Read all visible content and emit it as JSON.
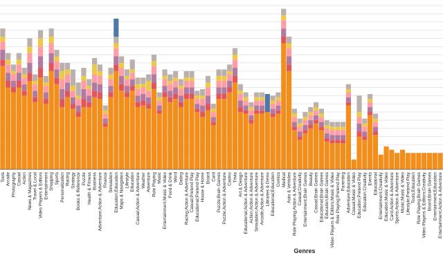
{
  "chart_data": {
    "type": "bar",
    "stacked": true,
    "xlabel": "Genres",
    "ylabel": "",
    "ylim": [
      0,
      1.0
    ],
    "grid": true,
    "legend": "none",
    "categories": [
      "Tools",
      "Arcade",
      "Photography",
      "Casual",
      "Action",
      "News & Magazines",
      "Travel & Local",
      "Video Players & Editors",
      "Entertainment",
      "Shopping",
      "Sports",
      "Personalization",
      "Racing",
      "Strategy",
      "Books & Reference",
      "Puzzle",
      "Health & Fitness",
      "Business",
      "Adventure;Action & Adventure",
      "Finance",
      "Simulation",
      "Education;Education",
      "Maps & Navigation",
      "Lifestyle",
      "Education",
      "Casual;Action & Adventure",
      "Weather",
      "Adventure",
      "Role Playing",
      "Music",
      "Entertainment;Music & Video",
      "Food & Drink",
      "Word",
      "Dating",
      "Racing;Action & Adventure",
      "Casual;Pretend Play",
      "Educational;Pretend Play",
      "House & Home",
      "Board",
      "Card",
      "Puzzle;Brain Games",
      "Puzzle;Action & Adventure",
      "Casino",
      "Trivia",
      "Art & Design",
      "Educational;Action & Adventure",
      "Action;Action & Adventure",
      "Simulation;Action & Adventure",
      "Arcade;Action & Adventure",
      "Libraries & Demo",
      "Educational;Education",
      "Comics",
      "Medical",
      "Auto & Vehicles",
      "Role Playing;Action & Adventure",
      "Casual;Creativity",
      "Entertainment;Brain Games",
      "Beauty",
      "Casual;Brain Games",
      "Educational;Brain Games",
      "Education;Brain Games",
      "Video Players & Editors;Music & Video",
      "Role Playing;Pretend Play",
      "Parenting",
      "Adventure;Education",
      "Casual;Music & Video",
      "Education;Pretend Play",
      "Education;Creativity",
      "Events",
      "Educational",
      "Entertainment;Creativity",
      "Education;Music & Video",
      "Card;Action & Adventure",
      "Sports;Action & Adventure",
      "Music;Music & Video",
      "Lifestyle;Pretend Play",
      "Tools;Education",
      "Role Playing;Brain Games",
      "Video Players & Editors;Creativity",
      "Board;Brain Games",
      "Entertainment;Education",
      "Entertainment;Action & Adventure"
    ],
    "series": [
      {
        "color": "#f28e1c",
        "values": [
          0.63,
          0.5,
          0.47,
          0.5,
          0.45,
          0.54,
          0.41,
          0.56,
          0.4,
          0.6,
          0.52,
          0.38,
          0.44,
          0.37,
          0.32,
          0.38,
          0.38,
          0.44,
          0.43,
          0.26,
          0.44,
          0.6,
          0.48,
          0.44,
          0.48,
          0.38,
          0.39,
          0.37,
          0.49,
          0.34,
          0.44,
          0.41,
          0.43,
          0.38,
          0.43,
          0.43,
          0.35,
          0.32,
          0.36,
          0.27,
          0.43,
          0.43,
          0.47,
          0.53,
          0.35,
          0.34,
          0.28,
          0.34,
          0.34,
          0.35,
          0.32,
          0.34,
          0.77,
          0.6,
          0.24,
          0.18,
          0.22,
          0.25,
          0.28,
          0.24,
          0.17,
          0.16,
          0.16,
          0.16,
          0.39,
          0.06,
          0.2,
          0.18,
          0.33,
          0.21,
          0.09,
          0.14,
          0.12,
          0.1,
          0.12,
          0.1,
          0.1,
          0.1,
          0.1,
          0.1,
          0.1,
          0.1
        ]
      },
      {
        "color": "#e15759",
        "values": [
          0.04,
          0.04,
          0.03,
          0.04,
          0.03,
          0.05,
          0.03,
          0.06,
          0.03,
          0.05,
          0.04,
          0.05,
          0.04,
          0.03,
          0.03,
          0.05,
          0.03,
          0.04,
          0.04,
          0.02,
          0.03,
          0.04,
          0.04,
          0.03,
          0.03,
          0.03,
          0.03,
          0.03,
          0.04,
          0.02,
          0.03,
          0.03,
          0.03,
          0.03,
          0.03,
          0.03,
          0.02,
          0.03,
          0.04,
          0.02,
          0.03,
          0.03,
          0.03,
          0.04,
          0.03,
          0.02,
          0.02,
          0.02,
          0.02,
          0.0,
          0.02,
          0.02,
          0.04,
          0.04,
          0.02,
          0.02,
          0.02,
          0.02,
          0.02,
          0.02,
          0.02,
          0.02,
          0.02,
          0.02,
          0.02,
          0.0,
          0.03,
          0.02,
          0.02,
          0.02,
          0.0,
          0.0,
          0.0,
          0.0,
          0.0,
          0.0,
          0.0,
          0.0,
          0.0,
          0.0,
          0.0,
          0.0
        ]
      },
      {
        "color": "#b07aa1",
        "values": [
          0.06,
          0.05,
          0.04,
          0.05,
          0.04,
          0.06,
          0.04,
          0.07,
          0.04,
          0.06,
          0.05,
          0.06,
          0.05,
          0.04,
          0.04,
          0.06,
          0.04,
          0.05,
          0.05,
          0.03,
          0.04,
          0.05,
          0.05,
          0.04,
          0.04,
          0.04,
          0.04,
          0.04,
          0.05,
          0.03,
          0.04,
          0.04,
          0.04,
          0.04,
          0.04,
          0.04,
          0.03,
          0.04,
          0.05,
          0.03,
          0.04,
          0.04,
          0.04,
          0.05,
          0.04,
          0.03,
          0.03,
          0.03,
          0.03,
          0.0,
          0.03,
          0.03,
          0.05,
          0.05,
          0.03,
          0.03,
          0.03,
          0.03,
          0.03,
          0.03,
          0.03,
          0.03,
          0.03,
          0.03,
          0.03,
          0.0,
          0.05,
          0.03,
          0.03,
          0.03,
          0.0,
          0.0,
          0.0,
          0.0,
          0.0,
          0.0,
          0.0,
          0.0,
          0.0,
          0.0,
          0.0,
          0.0
        ]
      },
      {
        "color": "#ff9da7",
        "values": [
          0.05,
          0.05,
          0.04,
          0.05,
          0.04,
          0.06,
          0.04,
          0.06,
          0.04,
          0.06,
          0.05,
          0.06,
          0.05,
          0.04,
          0.04,
          0.05,
          0.04,
          0.05,
          0.05,
          0.03,
          0.04,
          0.05,
          0.05,
          0.04,
          0.04,
          0.04,
          0.04,
          0.04,
          0.05,
          0.03,
          0.04,
          0.04,
          0.04,
          0.04,
          0.04,
          0.04,
          0.03,
          0.04,
          0.05,
          0.03,
          0.04,
          0.04,
          0.04,
          0.05,
          0.04,
          0.03,
          0.03,
          0.03,
          0.03,
          0.0,
          0.03,
          0.03,
          0.05,
          0.05,
          0.03,
          0.03,
          0.03,
          0.03,
          0.03,
          0.03,
          0.03,
          0.03,
          0.03,
          0.03,
          0.03,
          0.0,
          0.04,
          0.03,
          0.03,
          0.03,
          0.0,
          0.0,
          0.0,
          0.0,
          0.0,
          0.0,
          0.0,
          0.0,
          0.0,
          0.0,
          0.0,
          0.0
        ]
      },
      {
        "color": "#edc948",
        "values": [
          0.03,
          0.03,
          0.02,
          0.03,
          0.02,
          0.04,
          0.02,
          0.05,
          0.02,
          0.04,
          0.03,
          0.05,
          0.03,
          0.03,
          0.02,
          0.03,
          0.02,
          0.06,
          0.03,
          0.02,
          0.03,
          0.03,
          0.03,
          0.02,
          0.02,
          0.03,
          0.02,
          0.06,
          0.03,
          0.02,
          0.02,
          0.02,
          0.02,
          0.02,
          0.02,
          0.02,
          0.02,
          0.02,
          0.03,
          0.02,
          0.03,
          0.03,
          0.02,
          0.03,
          0.02,
          0.02,
          0.02,
          0.02,
          0.02,
          0.0,
          0.02,
          0.02,
          0.03,
          0.03,
          0.02,
          0.02,
          0.02,
          0.02,
          0.02,
          0.02,
          0.02,
          0.02,
          0.02,
          0.02,
          0.02,
          0.0,
          0.03,
          0.02,
          0.02,
          0.02,
          0.0,
          0.0,
          0.0,
          0.0,
          0.0,
          0.0,
          0.0,
          0.0,
          0.0,
          0.0,
          0.0,
          0.0
        ]
      },
      {
        "color": "#bab0ac",
        "values": [
          0.05,
          0.04,
          0.04,
          0.04,
          0.04,
          0.05,
          0.04,
          0.05,
          0.04,
          0.05,
          0.04,
          0.05,
          0.04,
          0.1,
          0.08,
          0.05,
          0.04,
          0.04,
          0.04,
          0.03,
          0.04,
          0.04,
          0.04,
          0.04,
          0.06,
          0.04,
          0.04,
          0.04,
          0.04,
          0.03,
          0.04,
          0.04,
          0.04,
          0.04,
          0.04,
          0.04,
          0.03,
          0.04,
          0.04,
          0.03,
          0.04,
          0.04,
          0.04,
          0.04,
          0.04,
          0.03,
          0.03,
          0.03,
          0.03,
          0.0,
          0.03,
          0.03,
          0.04,
          0.04,
          0.03,
          0.03,
          0.03,
          0.03,
          0.03,
          0.03,
          0.03,
          0.03,
          0.03,
          0.03,
          0.03,
          0.0,
          0.1,
          0.03,
          0.03,
          0.03,
          0.0,
          0.0,
          0.0,
          0.0,
          0.0,
          0.0,
          0.0,
          0.0,
          0.0,
          0.0,
          0.0,
          0.0
        ]
      },
      {
        "color": "#4e79a7",
        "values": [
          0.0,
          0.0,
          0.0,
          0.0,
          0.0,
          0.0,
          0.0,
          0.0,
          0.0,
          0.0,
          0.0,
          0.0,
          0.0,
          0.0,
          0.0,
          0.0,
          0.0,
          0.0,
          0.0,
          0.0,
          0.0,
          0.11,
          0.0,
          0.0,
          0.0,
          0.0,
          0.0,
          0.0,
          0.0,
          0.0,
          0.0,
          0.0,
          0.0,
          0.0,
          0.0,
          0.0,
          0.0,
          0.0,
          0.0,
          0.0,
          0.0,
          0.0,
          0.0,
          0.0,
          0.0,
          0.0,
          0.0,
          0.0,
          0.0,
          0.11,
          0.0,
          0.0,
          0.0,
          0.0,
          0.0,
          0.0,
          0.0,
          0.0,
          0.0,
          0.0,
          0.0,
          0.0,
          0.0,
          0.0,
          0.0,
          0.0,
          0.0,
          0.0,
          0.0,
          0.0,
          0.0,
          0.0,
          0.0,
          0.0,
          0.0,
          0.0,
          0.0,
          0.0,
          0.0,
          0.0,
          0.0,
          0.0
        ]
      }
    ]
  }
}
